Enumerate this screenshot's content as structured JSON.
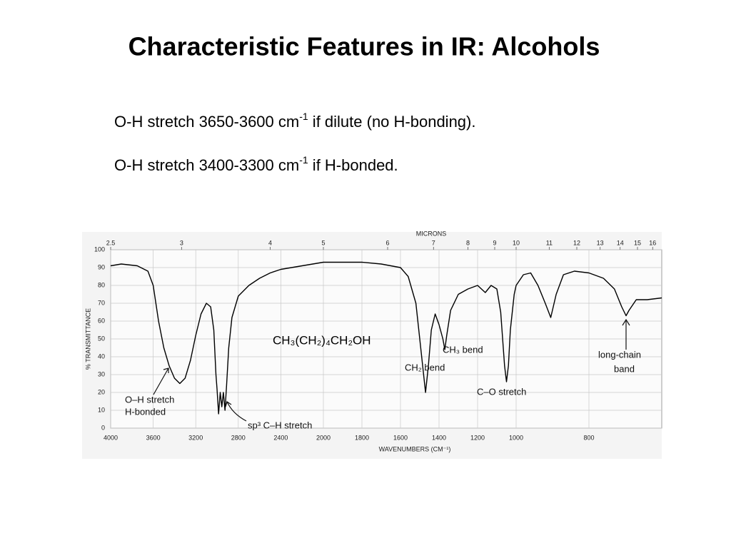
{
  "title": "Characteristic Features in IR: Alcohols",
  "bullets": [
    {
      "before": "O-H stretch 3650-3600 cm",
      "sup": "-1",
      "after": " if dilute (no H-bonding)."
    },
    {
      "before": "O-H stretch 3400-3300 cm",
      "sup": "-1",
      "after": " if H-bonded."
    }
  ],
  "chart_data": {
    "type": "line",
    "xlabel": "WAVENUMBERS (CM⁻¹)",
    "ylabel": "% TRANSMITTANCE",
    "x2label": "MICRONS",
    "xlim": [
      4000,
      600
    ],
    "xbreaks": [
      2000,
      1000
    ],
    "xticks": [
      4000,
      3600,
      3200,
      2800,
      2400,
      2000,
      1800,
      1600,
      1400,
      1200,
      1000,
      800
    ],
    "x2ticks": [
      2.5,
      3,
      4,
      5,
      6,
      7,
      8,
      9,
      10,
      11,
      12,
      13,
      14,
      15,
      16
    ],
    "ylim": [
      0,
      100
    ],
    "yticks": [
      0,
      10,
      20,
      30,
      40,
      50,
      60,
      70,
      80,
      90,
      100
    ],
    "grid": true,
    "x": [
      4000,
      3900,
      3750,
      3650,
      3600,
      3550,
      3500,
      3450,
      3400,
      3350,
      3300,
      3250,
      3200,
      3150,
      3100,
      3060,
      3030,
      3010,
      3000,
      2985,
      2970,
      2955,
      2940,
      2925,
      2910,
      2890,
      2860,
      2800,
      2700,
      2600,
      2500,
      2400,
      2200,
      2000,
      1800,
      1700,
      1600,
      1560,
      1520,
      1490,
      1470,
      1455,
      1440,
      1420,
      1400,
      1380,
      1370,
      1360,
      1340,
      1300,
      1250,
      1200,
      1160,
      1130,
      1100,
      1080,
      1060,
      1050,
      1040,
      1030,
      1010,
      1000,
      980,
      960,
      940,
      920,
      905,
      890,
      870,
      840,
      800,
      760,
      730,
      710,
      698,
      690,
      670,
      640,
      600
    ],
    "series": [
      {
        "color": "#000000",
        "values": [
          91,
          92,
          91,
          88,
          80,
          60,
          45,
          35,
          28,
          25,
          28,
          38,
          52,
          64,
          70,
          68,
          55,
          30,
          22,
          8,
          20,
          12,
          20,
          10,
          24,
          45,
          62,
          74,
          80,
          84,
          87,
          89,
          91,
          93,
          93,
          92,
          90,
          85,
          70,
          40,
          20,
          35,
          55,
          64,
          58,
          50,
          44,
          52,
          66,
          75,
          78,
          80,
          76,
          80,
          78,
          65,
          35,
          26,
          35,
          55,
          75,
          80,
          86,
          87,
          80,
          70,
          62,
          75,
          86,
          88,
          87,
          84,
          78,
          68,
          63,
          66,
          72,
          72,
          73
        ]
      }
    ],
    "annotations": [
      "CH₃(CH₂)₄CH₂OH",
      "O–H stretch",
      "H-bonded",
      "sp³ C–H stretch",
      "CH₃ bend",
      "CH₂ bend",
      "C–O stretch",
      "long-chain",
      "band"
    ]
  }
}
